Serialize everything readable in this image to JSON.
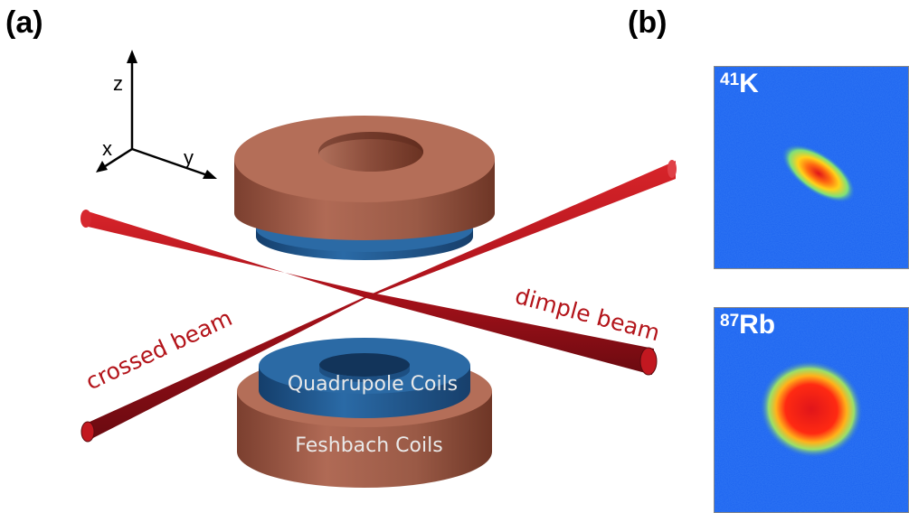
{
  "panels": {
    "a": {
      "label": "(a)"
    },
    "b": {
      "label": "(b)"
    }
  },
  "axes": {
    "z": "z",
    "x": "x",
    "y": "y"
  },
  "beams": {
    "crossed": "crossed beam",
    "dimple": "dimple beam"
  },
  "coils": {
    "quadrupole": "Quadrupole Coils",
    "feshbach": "Feshbach Coils"
  },
  "images": [
    {
      "mass": "41",
      "element": "K"
    },
    {
      "mass": "87",
      "element": "Rb"
    }
  ],
  "colors": {
    "copper": "#a0604b",
    "coil_blue": "#1f5f9a",
    "beam_red": "#b3141a",
    "image_bg": "#1b62f0",
    "beam_label": "#b3141a",
    "coil_label": "#e9e9e9"
  }
}
